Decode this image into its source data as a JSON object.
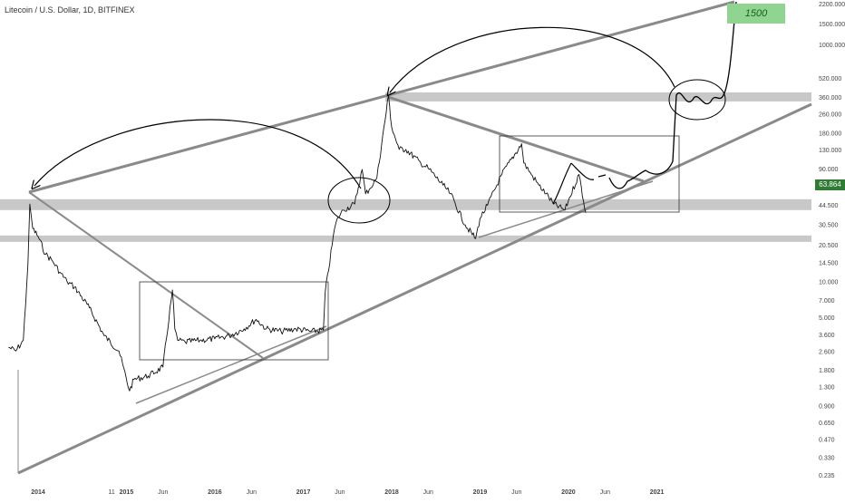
{
  "title": "Litecoin / U.S. Dollar, 1D, BITFINEX",
  "last_price": "63.864",
  "target_label": "1500",
  "colors": {
    "price": "#111111",
    "trendline": "#8a8a8a",
    "zone": "#c8c8c8",
    "last_price_bg": "#2e7d32",
    "target_bg": "#8fd48f"
  },
  "chart_data": {
    "type": "line",
    "title": "Litecoin / U.S. Dollar, 1D, BITFINEX",
    "xlabel": "",
    "ylabel": "",
    "y_scale": "log",
    "ylim": [
      0.22,
      2400
    ],
    "x_ticks": [
      "2014",
      "11",
      "2015",
      "Jun",
      "2016",
      "Jun",
      "2017",
      "Jun",
      "2018",
      "Jun",
      "2019",
      "Jun",
      "2020",
      "Jun",
      "2021"
    ],
    "y_ticks": [
      "2200.000",
      "1500.000",
      "1000.000",
      "520.000",
      "360.000",
      "260.000",
      "180.000",
      "130.000",
      "90.000",
      "63.864",
      "44.500",
      "30.500",
      "20.500",
      "14.500",
      "10.000",
      "7.000",
      "5.000",
      "3.600",
      "2.600",
      "1.800",
      "1.300",
      "0.900",
      "0.650",
      "0.470",
      "0.330",
      "0.235"
    ],
    "grid": false,
    "series": [
      {
        "x": [
          "2013-09",
          "2013-10",
          "2013-11",
          "2013-11-20",
          "2013-11-28",
          "2013-12-10",
          "2014-01",
          "2014-02",
          "2014-03",
          "2014-04",
          "2014-05",
          "2014-06",
          "2014-08",
          "2014-10",
          "2014-12",
          "2015-01-14",
          "2015-02",
          "2015-04",
          "2015-06",
          "2015-07-10",
          "2015-07-20",
          "2015-08",
          "2015-09",
          "2015-11",
          "2016-01",
          "2016-03",
          "2016-05",
          "2016-06-20",
          "2016-08",
          "2016-10",
          "2016-12",
          "2017-02",
          "2017-03-25",
          "2017-04",
          "2017-05-10",
          "2017-05-25",
          "2017-06-15",
          "2017-08",
          "2017-09-01",
          "2017-09-15",
          "2017-10",
          "2017-11",
          "2017-12-19",
          "2018-01",
          "2018-02",
          "2018-03",
          "2018-05",
          "2018-06",
          "2018-08",
          "2018-09",
          "2018-11",
          "2018-12-14",
          "2019-01",
          "2019-02",
          "2019-04",
          "2019-06-22",
          "2019-07",
          "2019-08",
          "2019-09",
          "2019-10",
          "2019-11",
          "2019-12-18",
          "2020-01",
          "2020-02-14",
          "2020-03-13"
        ],
        "values": [
          2.8,
          2.6,
          3.2,
          14,
          45,
          28,
          24,
          17,
          15,
          12,
          10,
          9,
          6,
          3.5,
          2.6,
          1.2,
          1.5,
          1.6,
          1.9,
          8.5,
          4,
          3.2,
          3.1,
          3.2,
          3.3,
          3.5,
          4,
          4.8,
          4,
          3.8,
          4,
          3.8,
          3.9,
          8,
          28,
          35,
          40,
          45,
          88,
          55,
          60,
          75,
          370,
          200,
          130,
          130,
          100,
          90,
          65,
          55,
          30,
          23,
          34,
          44,
          80,
          145,
          100,
          80,
          65,
          55,
          45,
          40,
          48,
          80,
          38
        ]
      }
    ],
    "annotations": {
      "zones": [
        360,
        44.5,
        23
      ],
      "projection_target": "1500"
    }
  }
}
